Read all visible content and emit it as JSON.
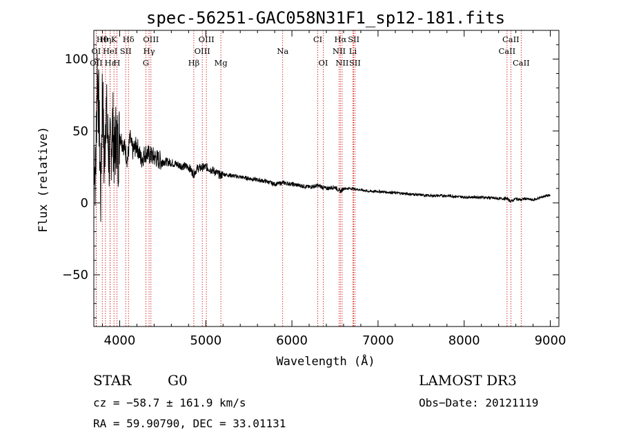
{
  "chart_data": {
    "type": "line",
    "title": "spec-56251-GAC058N31F1_sp12-181.fits",
    "xlabel": "Wavelength (Å)",
    "ylabel": "Flux (relative)",
    "xlim": [
      3700,
      9100
    ],
    "ylim": [
      -86,
      120
    ],
    "x_ticks": [
      4000,
      5000,
      6000,
      7000,
      8000,
      9000
    ],
    "y_ticks": [
      -50,
      0,
      50,
      100
    ],
    "series": [
      {
        "name": "flux",
        "x": [
          3700,
          3720,
          3740,
          3760,
          3780,
          3800,
          3820,
          3840,
          3860,
          3880,
          3900,
          3920,
          3940,
          3960,
          3980,
          4000,
          4030,
          4060,
          4090,
          4120,
          4150,
          4200,
          4250,
          4300,
          4350,
          4400,
          4450,
          4500,
          4600,
          4700,
          4800,
          4860,
          4900,
          5000,
          5100,
          5170,
          5200,
          5300,
          5400,
          5500,
          5600,
          5700,
          5800,
          5900,
          6000,
          6100,
          6200,
          6300,
          6400,
          6500,
          6563,
          6600,
          6700,
          6800,
          6900,
          7000,
          7200,
          7400,
          7600,
          7800,
          8000,
          8200,
          8400,
          8500,
          8542,
          8600,
          8662,
          8700,
          8800,
          8850,
          8900,
          8950,
          9000
        ],
        "y": [
          40,
          15,
          95,
          60,
          5,
          85,
          20,
          70,
          45,
          30,
          40,
          55,
          30,
          50,
          35,
          48,
          42,
          38,
          30,
          45,
          36,
          40,
          30,
          35,
          33,
          32,
          30,
          29,
          28,
          26,
          25,
          20,
          24,
          25,
          22,
          19,
          20,
          19,
          18,
          17,
          16,
          15,
          13,
          14,
          13,
          12,
          11,
          12,
          10,
          11,
          8,
          10,
          10,
          9,
          8,
          8,
          7,
          6,
          5,
          5,
          4,
          4,
          3,
          3,
          1,
          3,
          2,
          3,
          2,
          3,
          4,
          5,
          5
        ]
      }
    ],
    "spectral_lines": [
      {
        "name": "Hθ",
        "wavelength": 3798,
        "row": 0
      },
      {
        "name": "Hη",
        "wavelength": 3835,
        "row": 0
      },
      {
        "name": "K",
        "wavelength": 3934,
        "row": 0
      },
      {
        "name": "Hδ",
        "wavelength": 4102,
        "row": 0
      },
      {
        "name": "OIII",
        "wavelength": 4363,
        "row": 0
      },
      {
        "name": "OIII",
        "wavelength": 5007,
        "row": 0
      },
      {
        "name": "CI",
        "wavelength": 6300,
        "row": 0
      },
      {
        "name": "Hα",
        "wavelength": 6563,
        "row": 0
      },
      {
        "name": "SII",
        "wavelength": 6717,
        "row": 0
      },
      {
        "name": "CaII",
        "wavelength": 8542,
        "row": 0
      },
      {
        "name": "OI",
        "wavelength": 3727,
        "row": 1
      },
      {
        "name": "HeI",
        "wavelength": 3889,
        "row": 1
      },
      {
        "name": "SII",
        "wavelength": 4070,
        "row": 1
      },
      {
        "name": "Hγ",
        "wavelength": 4341,
        "row": 1
      },
      {
        "name": "OIII",
        "wavelength": 4959,
        "row": 1
      },
      {
        "name": "Na",
        "wavelength": 5893,
        "row": 1
      },
      {
        "name": "NII",
        "wavelength": 6548,
        "row": 1
      },
      {
        "name": "Li",
        "wavelength": 6708,
        "row": 1
      },
      {
        "name": "CaII",
        "wavelength": 8498,
        "row": 1
      },
      {
        "name": "OII",
        "wavelength": 3727,
        "row": 2
      },
      {
        "name": "Hε",
        "wavelength": 3889,
        "row": 2
      },
      {
        "name": "H",
        "wavelength": 3968,
        "row": 2
      },
      {
        "name": "G",
        "wavelength": 4304,
        "row": 2
      },
      {
        "name": "Hβ",
        "wavelength": 4861,
        "row": 2
      },
      {
        "name": "Mg",
        "wavelength": 5175,
        "row": 2
      },
      {
        "name": "OI",
        "wavelength": 6364,
        "row": 2
      },
      {
        "name": "NII",
        "wavelength": 6583,
        "row": 2
      },
      {
        "name": "SII",
        "wavelength": 6731,
        "row": 2
      },
      {
        "name": "CaII",
        "wavelength": 8662,
        "row": 2
      }
    ],
    "line_marker_color": "#cc0000"
  },
  "info": {
    "object_class": "STAR",
    "subclass": "G0",
    "survey": "LAMOST DR3",
    "redshift": "cz = −58.7 ± 161.9 km/s",
    "obs_date": "Obs−Date: 20121119",
    "coordinates": "RA =  59.90790, DEC =  33.01131"
  }
}
